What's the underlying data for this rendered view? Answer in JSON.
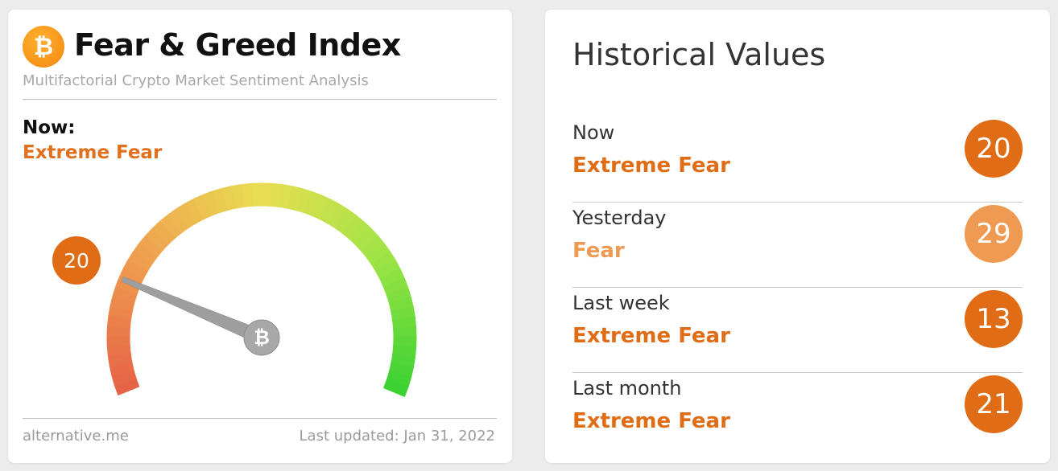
{
  "colors": {
    "extreme_fear": "#e06c15",
    "fear": "#ee9a52",
    "bitcoin": "#f7931a"
  },
  "widget": {
    "logo_icon": "bitcoin-icon",
    "title": "Fear & Greed Index",
    "subtitle": "Multifactorial Crypto Market Sentiment Analysis",
    "now_label": "Now:",
    "now_classification": "Extreme Fear",
    "gauge": {
      "value": 20,
      "value_label": "20",
      "min": 0,
      "max": 100
    },
    "footer_source": "alternative.me",
    "footer_updated": "Last updated: Jan 31, 2022"
  },
  "historical": {
    "title": "Historical Values",
    "rows": [
      {
        "label": "Now",
        "classification": "Extreme Fear",
        "value": "20",
        "color": "#e06c15"
      },
      {
        "label": "Yesterday",
        "classification": "Fear",
        "value": "29",
        "color": "#ee9a52"
      },
      {
        "label": "Last week",
        "classification": "Extreme Fear",
        "value": "13",
        "color": "#e06c15"
      },
      {
        "label": "Last month",
        "classification": "Extreme Fear",
        "value": "21",
        "color": "#e06c15"
      }
    ]
  }
}
